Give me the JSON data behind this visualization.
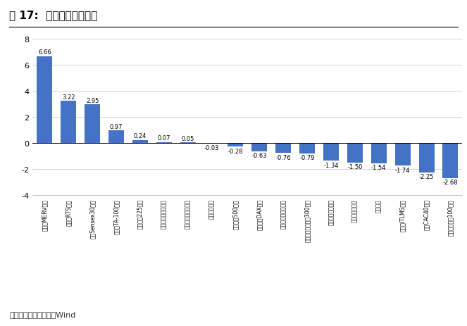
{
  "title": "图 17:  全球股市多数下跌",
  "categories": [
    "阿根廷MERV指数",
    "俄罗斯RTS指数",
    "孟买Sensex30指数",
    "以色列TA-100指数",
    "东京日经225指数",
    "印尼雅加达综合指数",
    "澳大利亚普通股指数",
    "韩国综合指数",
    "标准普尔500指数",
    "法兰克福DAX指数",
    "道琼斯工业平均指数",
    "多伦多股票交易所300指数",
    "纳斯达克综合指数",
    "新加坡海峡指数",
    "恒生指数",
    "意大利ITLMS指数",
    "巴黎CAC40指数",
    "伦敦金融时报100指数"
  ],
  "values": [
    6.66,
    3.22,
    2.95,
    0.97,
    0.24,
    0.07,
    0.05,
    -0.03,
    -0.28,
    -0.63,
    -0.76,
    -0.79,
    -1.34,
    -1.5,
    -1.54,
    -1.74,
    -2.25,
    -2.68
  ],
  "bar_color": "#4472C4",
  "ylim": [
    -4.0,
    8.0
  ],
  "yticks": [
    -4.0,
    -2.0,
    0.0,
    2.0,
    4.0,
    6.0,
    8.0
  ],
  "source_text": "数据来源：东北证券，Wind",
  "background_color": "#ffffff",
  "grid_color": "#cccccc"
}
